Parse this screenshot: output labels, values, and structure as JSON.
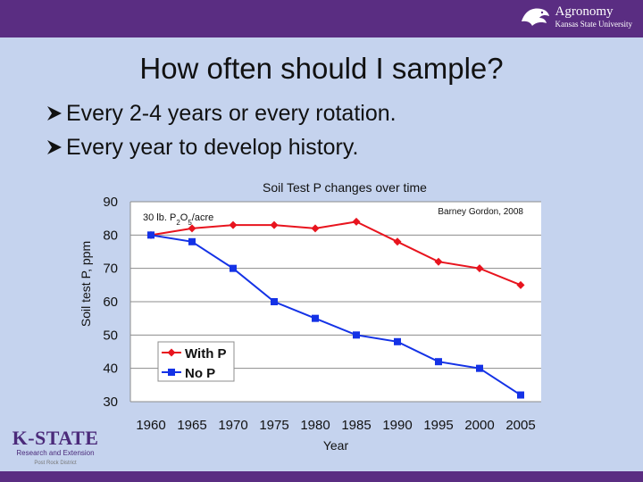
{
  "header": {
    "logo_title": "Agronomy",
    "logo_subtitle": "Kansas State University"
  },
  "slide": {
    "title": "How often should I sample?",
    "bullets": [
      "Every 2-4 years or every rotation.",
      "Every year to develop history."
    ]
  },
  "footer_logo": {
    "name": "K-STATE",
    "line1": "Research and Extension",
    "line2": "Post Rock District"
  },
  "colors": {
    "with_p": "#e8141e",
    "no_p": "#1432e6",
    "brand": "#5a2d82"
  },
  "chart_data": {
    "type": "line",
    "title": "Soil Test P changes over time",
    "annotation_rate": "30 lb. P2O5/acre",
    "annotation_source": "Barney Gordon, 2008",
    "xlabel": "Year",
    "ylabel": "Soil test P, ppm",
    "x_ticks": [
      1960,
      1965,
      1970,
      1975,
      1980,
      1985,
      1990,
      1995,
      2000,
      2005
    ],
    "y_ticks": [
      30,
      40,
      50,
      60,
      70,
      80,
      90
    ],
    "xlim": [
      1957.5,
      2007.5
    ],
    "ylim": [
      30,
      90
    ],
    "grid": "horizontal",
    "legend_position": "bottom-left",
    "series": [
      {
        "name": "With P",
        "marker": "diamond",
        "x": [
          1960,
          1965,
          1970,
          1975,
          1980,
          1985,
          1990,
          1995,
          2000,
          2005
        ],
        "values": [
          80,
          82,
          83,
          83,
          82,
          84,
          78,
          72,
          70,
          65
        ]
      },
      {
        "name": "No P",
        "marker": "square",
        "x": [
          1960,
          1965,
          1970,
          1975,
          1980,
          1985,
          1990,
          1995,
          2000,
          2005
        ],
        "values": [
          80,
          78,
          70,
          60,
          55,
          50,
          48,
          42,
          40,
          32
        ]
      }
    ]
  }
}
